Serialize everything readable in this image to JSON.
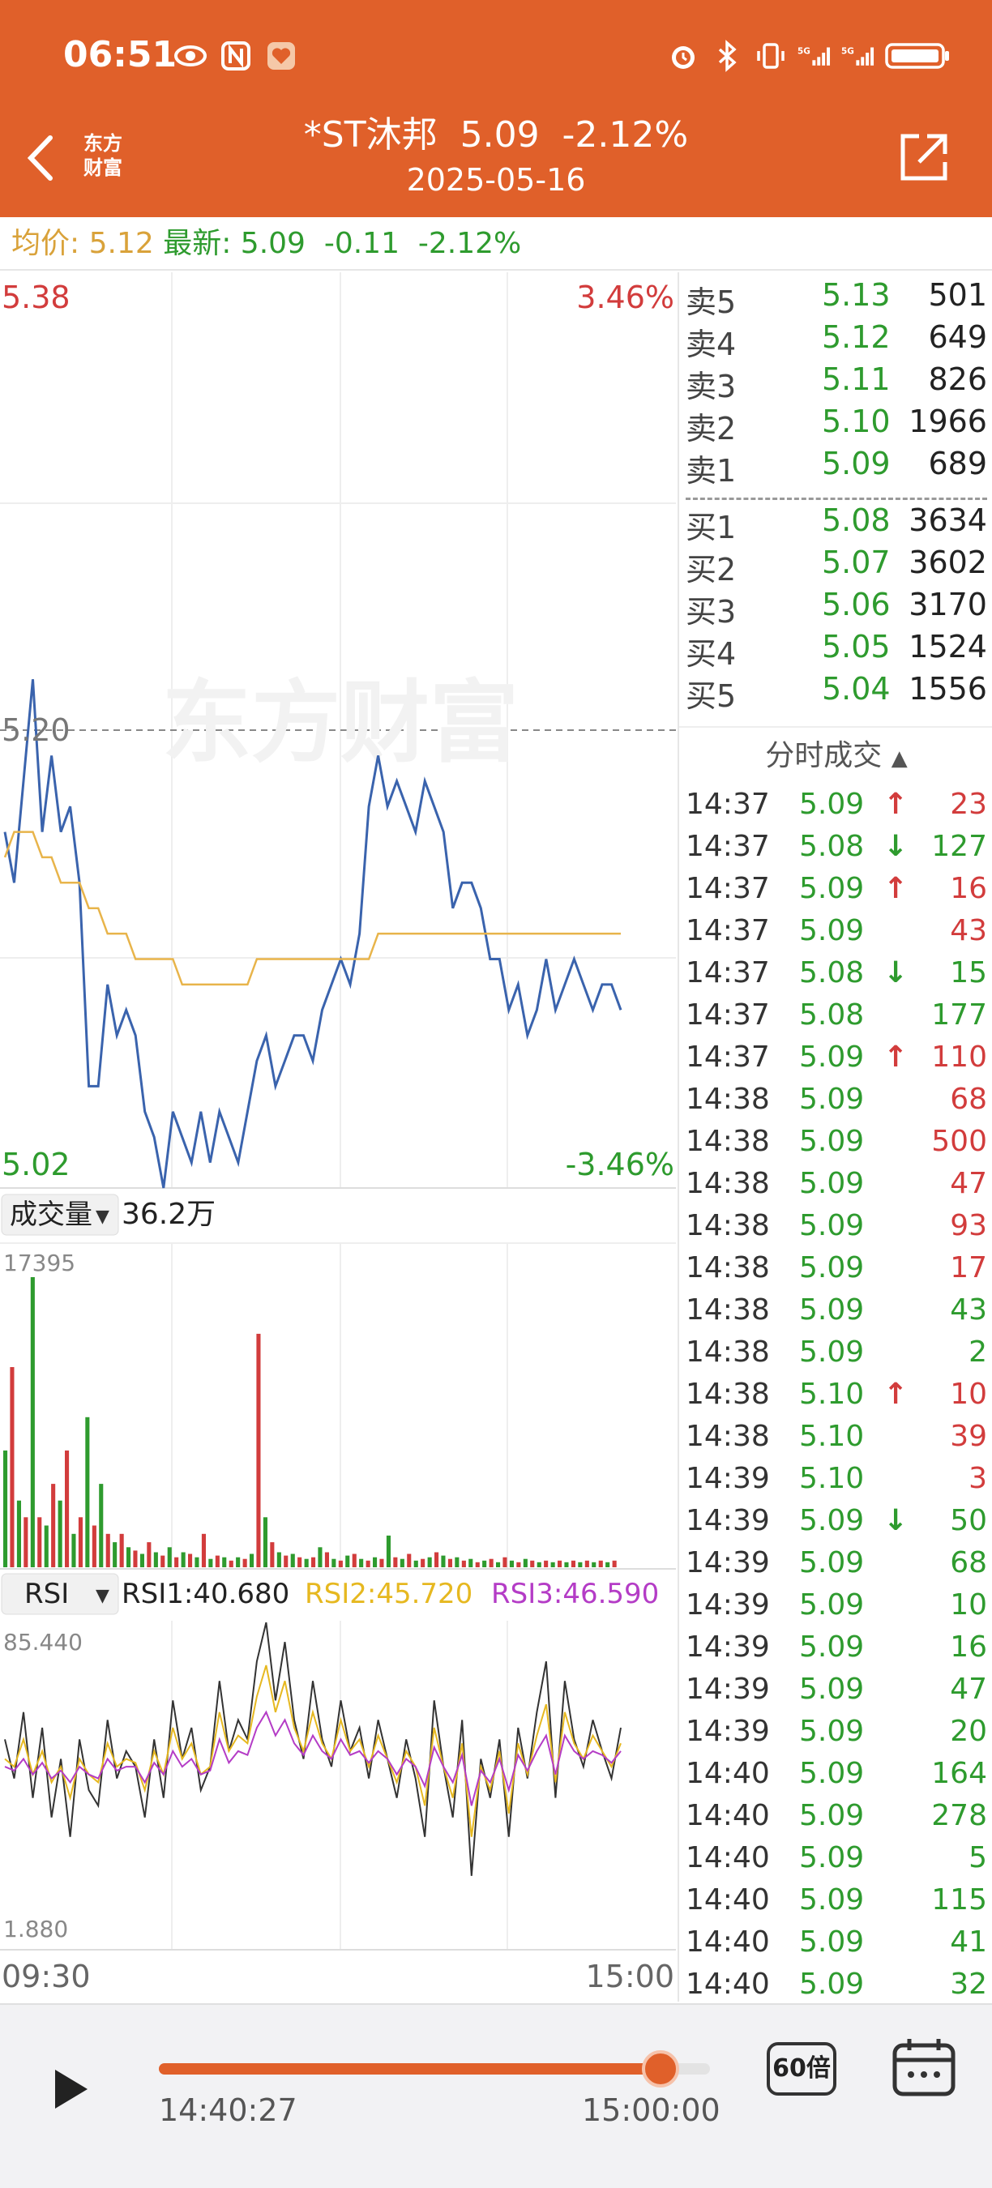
{
  "status_bar": {
    "time": "06:51",
    "icons_left": [
      "eye-icon",
      "nfc-icon",
      "heart-app-icon"
    ],
    "icons_right": [
      "alarm-icon",
      "bluetooth-icon",
      "vibrate-icon",
      "signal-5g-1-icon",
      "signal-5g-2-icon",
      "battery-icon"
    ]
  },
  "header": {
    "logo_line1": "东方",
    "logo_line2": "财富",
    "stock_name": "*ST沐邦",
    "price": "5.09",
    "change_pct": "-2.12%",
    "date": "2025-05-16",
    "bg_color": "#e0602a"
  },
  "price_bar": {
    "avg_label": "均价:",
    "avg_value": "5.12",
    "latest_label": "最新:",
    "latest_value": "5.09",
    "change": "-0.11",
    "change_pct": "-2.12%"
  },
  "main_chart": {
    "top_price": "5.38",
    "top_pct": "3.46%",
    "prev_close": "5.20",
    "bottom_price": "5.02",
    "bottom_pct": "-3.46%",
    "watermark": "东方财富"
  },
  "volume_panel": {
    "label": "成交量",
    "total": "36.2万",
    "max": "17395"
  },
  "rsi_panel": {
    "label": "RSI",
    "rsi1": "RSI1:40.680",
    "rsi2": "RSI2:45.720",
    "rsi3": "RSI3:46.590",
    "max": "85.440",
    "min": "1.880"
  },
  "time_axis": {
    "start": "09:30",
    "end": "15:00"
  },
  "chart_data": [
    {
      "type": "line",
      "title": "",
      "ylim": [
        5.02,
        5.38
      ],
      "x_range": [
        "09:30",
        "15:00"
      ],
      "series": [
        {
          "name": "",
          "values": [
            5.16,
            5.14,
            5.18,
            5.22,
            5.16,
            5.19,
            5.16,
            5.17,
            5.14,
            5.06,
            5.06,
            5.1,
            5.08,
            5.09,
            5.08,
            5.05,
            5.04,
            5.02,
            5.05,
            5.04,
            5.03,
            5.05,
            5.03,
            5.05,
            5.04,
            5.03,
            5.05,
            5.07,
            5.08,
            5.06,
            5.07,
            5.08,
            5.08,
            5.07,
            5.09,
            5.1,
            5.11,
            5.1,
            5.12,
            5.17,
            5.19,
            5.17,
            5.18,
            5.17,
            5.16,
            5.18,
            5.17,
            5.16,
            5.13,
            5.14,
            5.14,
            5.13,
            5.11,
            5.11,
            5.09,
            5.1,
            5.08,
            5.09,
            5.11,
            5.09,
            5.1,
            5.11,
            5.1,
            5.09,
            5.1,
            5.1,
            5.09
          ]
        },
        {
          "name": "",
          "values": [
            5.15,
            5.16,
            5.16,
            5.16,
            5.15,
            5.15,
            5.14,
            5.14,
            5.14,
            5.13,
            5.13,
            5.12,
            5.12,
            5.12,
            5.11,
            5.11,
            5.11,
            5.11,
            5.11,
            5.1,
            5.1,
            5.1,
            5.1,
            5.1,
            5.1,
            5.1,
            5.1,
            5.11,
            5.11,
            5.11,
            5.11,
            5.11,
            5.11,
            5.11,
            5.11,
            5.11,
            5.11,
            5.11,
            5.11,
            5.11,
            5.12,
            5.12,
            5.12,
            5.12,
            5.12,
            5.12,
            5.12,
            5.12,
            5.12,
            5.12,
            5.12,
            5.12,
            5.12,
            5.12,
            5.12,
            5.12,
            5.12,
            5.12,
            5.12,
            5.12,
            5.12,
            5.12,
            5.12,
            5.12,
            5.12,
            5.12,
            5.12
          ]
        }
      ]
    },
    {
      "type": "bar",
      "title": "",
      "ylim": [
        0,
        17395
      ],
      "colors": [
        "#2e9b2e",
        "#d23c3c"
      ],
      "values": [
        7000,
        12000,
        4000,
        3000,
        17395,
        3000,
        2500,
        5000,
        4000,
        7000,
        2000,
        3000,
        9000,
        2500,
        5000,
        2000,
        1500,
        2000,
        1200,
        1000,
        800,
        1500,
        900,
        700,
        1200,
        600,
        900,
        800,
        600,
        2000,
        500,
        700,
        600,
        400,
        600,
        500,
        800,
        14000,
        3000,
        1500,
        900,
        700,
        800,
        600,
        500,
        600,
        1200,
        900,
        500,
        400,
        700,
        800,
        500,
        400,
        600,
        500,
        1900,
        600,
        500,
        800,
        400,
        500,
        600,
        900,
        700,
        500,
        600,
        400,
        500,
        300,
        400,
        500,
        300,
        600,
        400,
        300,
        500,
        400,
        300,
        400,
        300,
        400,
        300,
        400,
        300,
        400,
        300,
        400,
        300,
        400
      ],
      "colorize": "alternate"
    },
    {
      "type": "line",
      "title": "",
      "ylim": [
        1.88,
        85.44
      ],
      "series": [
        {
          "name": "RSI1",
          "values": [
            55,
            45,
            62,
            40,
            58,
            35,
            50,
            30,
            55,
            42,
            38,
            60,
            45,
            52,
            48,
            35,
            55,
            40,
            65,
            50,
            58,
            42,
            48,
            70,
            52,
            60,
            55,
            75,
            85,
            65,
            80,
            60,
            50,
            70,
            55,
            48,
            65,
            52,
            58,
            45,
            60,
            50,
            40,
            55,
            45,
            30,
            65,
            48,
            35,
            60,
            20,
            50,
            40,
            55,
            30,
            58,
            45,
            62,
            75,
            40,
            70,
            55,
            48,
            60,
            52,
            45,
            58
          ]
        },
        {
          "name": "RSI2",
          "values": [
            50,
            48,
            55,
            46,
            52,
            44,
            48,
            40,
            50,
            46,
            44,
            54,
            48,
            50,
            49,
            42,
            52,
            46,
            58,
            50,
            54,
            46,
            48,
            62,
            52,
            56,
            54,
            66,
            74,
            62,
            70,
            58,
            52,
            62,
            54,
            50,
            60,
            52,
            55,
            48,
            56,
            50,
            44,
            52,
            48,
            38,
            58,
            48,
            40,
            54,
            30,
            48,
            42,
            52,
            36,
            54,
            46,
            56,
            64,
            44,
            62,
            54,
            50,
            56,
            52,
            48,
            54
          ]
        },
        {
          "name": "RSI3",
          "values": [
            48,
            47,
            50,
            46,
            49,
            45,
            47,
            44,
            48,
            46,
            45,
            50,
            47,
            48,
            48,
            44,
            49,
            46,
            52,
            48,
            50,
            46,
            47,
            55,
            49,
            52,
            51,
            58,
            62,
            56,
            60,
            54,
            51,
            56,
            52,
            50,
            55,
            51,
            52,
            49,
            52,
            50,
            46,
            50,
            48,
            43,
            53,
            48,
            44,
            51,
            38,
            47,
            44,
            50,
            42,
            51,
            47,
            52,
            56,
            46,
            56,
            52,
            50,
            52,
            51,
            49,
            52
          ]
        }
      ]
    }
  ],
  "order_book": {
    "asks": [
      {
        "label": "卖5",
        "price": "5.13",
        "vol": "501"
      },
      {
        "label": "卖4",
        "price": "5.12",
        "vol": "649"
      },
      {
        "label": "卖3",
        "price": "5.11",
        "vol": "826"
      },
      {
        "label": "卖2",
        "price": "5.10",
        "vol": "1966"
      },
      {
        "label": "卖1",
        "price": "5.09",
        "vol": "689"
      }
    ],
    "bids": [
      {
        "label": "买1",
        "price": "5.08",
        "vol": "3634"
      },
      {
        "label": "买2",
        "price": "5.07",
        "vol": "3602"
      },
      {
        "label": "买3",
        "price": "5.06",
        "vol": "3170"
      },
      {
        "label": "买4",
        "price": "5.05",
        "vol": "1524"
      },
      {
        "label": "买5",
        "price": "5.04",
        "vol": "1556"
      }
    ]
  },
  "ticks": {
    "title": "分时成交",
    "rows": [
      {
        "time": "14:37",
        "price": "5.09",
        "arrow": "↑",
        "vol": "23",
        "dir": "up"
      },
      {
        "time": "14:37",
        "price": "5.08",
        "arrow": "↓",
        "vol": "127",
        "dir": "down"
      },
      {
        "time": "14:37",
        "price": "5.09",
        "arrow": "↑",
        "vol": "16",
        "dir": "up"
      },
      {
        "time": "14:37",
        "price": "5.09",
        "arrow": "",
        "vol": "43",
        "dir": "up"
      },
      {
        "time": "14:37",
        "price": "5.08",
        "arrow": "↓",
        "vol": "15",
        "dir": "down"
      },
      {
        "time": "14:37",
        "price": "5.08",
        "arrow": "",
        "vol": "177",
        "dir": "down"
      },
      {
        "time": "14:37",
        "price": "5.09",
        "arrow": "↑",
        "vol": "110",
        "dir": "up"
      },
      {
        "time": "14:38",
        "price": "5.09",
        "arrow": "",
        "vol": "68",
        "dir": "up"
      },
      {
        "time": "14:38",
        "price": "5.09",
        "arrow": "",
        "vol": "500",
        "dir": "up"
      },
      {
        "time": "14:38",
        "price": "5.09",
        "arrow": "",
        "vol": "47",
        "dir": "up"
      },
      {
        "time": "14:38",
        "price": "5.09",
        "arrow": "",
        "vol": "93",
        "dir": "up"
      },
      {
        "time": "14:38",
        "price": "5.09",
        "arrow": "",
        "vol": "17",
        "dir": "up"
      },
      {
        "time": "14:38",
        "price": "5.09",
        "arrow": "",
        "vol": "43",
        "dir": "down"
      },
      {
        "time": "14:38",
        "price": "5.09",
        "arrow": "",
        "vol": "2",
        "dir": "down"
      },
      {
        "time": "14:38",
        "price": "5.10",
        "arrow": "↑",
        "vol": "10",
        "dir": "up"
      },
      {
        "time": "14:38",
        "price": "5.10",
        "arrow": "",
        "vol": "39",
        "dir": "up"
      },
      {
        "time": "14:39",
        "price": "5.10",
        "arrow": "",
        "vol": "3",
        "dir": "up"
      },
      {
        "time": "14:39",
        "price": "5.09",
        "arrow": "↓",
        "vol": "50",
        "dir": "down"
      },
      {
        "time": "14:39",
        "price": "5.09",
        "arrow": "",
        "vol": "68",
        "dir": "down"
      },
      {
        "time": "14:39",
        "price": "5.09",
        "arrow": "",
        "vol": "10",
        "dir": "down"
      },
      {
        "time": "14:39",
        "price": "5.09",
        "arrow": "",
        "vol": "16",
        "dir": "down"
      },
      {
        "time": "14:39",
        "price": "5.09",
        "arrow": "",
        "vol": "47",
        "dir": "down"
      },
      {
        "time": "14:39",
        "price": "5.09",
        "arrow": "",
        "vol": "20",
        "dir": "down"
      },
      {
        "time": "14:40",
        "price": "5.09",
        "arrow": "",
        "vol": "164",
        "dir": "down"
      },
      {
        "time": "14:40",
        "price": "5.09",
        "arrow": "",
        "vol": "278",
        "dir": "down"
      },
      {
        "time": "14:40",
        "price": "5.09",
        "arrow": "",
        "vol": "5",
        "dir": "down"
      },
      {
        "time": "14:40",
        "price": "5.09",
        "arrow": "",
        "vol": "115",
        "dir": "down"
      },
      {
        "time": "14:40",
        "price": "5.09",
        "arrow": "",
        "vol": "41",
        "dir": "down"
      },
      {
        "time": "14:40",
        "price": "5.09",
        "arrow": "",
        "vol": "32",
        "dir": "down"
      }
    ]
  },
  "playback": {
    "current_time": "14:40:27",
    "end_time": "15:00:00",
    "progress": 0.91,
    "speed": "60倍"
  }
}
